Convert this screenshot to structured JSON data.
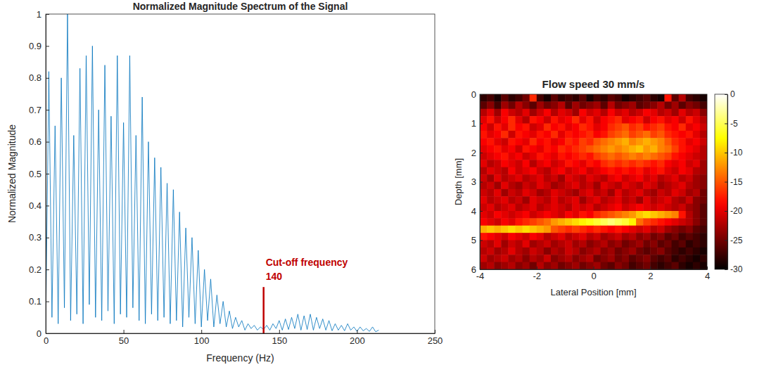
{
  "chart_data": [
    {
      "type": "line",
      "title": "Normalized Magnitude Spectrum of the Signal",
      "x_label": "Frequency (Hz)",
      "y_label": "Normalized Magnitude",
      "xlim": [
        0,
        250
      ],
      "xticks": [
        0,
        50,
        100,
        150,
        200,
        250
      ],
      "ylim": [
        0,
        1
      ],
      "yticks": [
        0,
        0.1,
        0.2,
        0.3,
        0.4,
        0.5,
        0.6,
        0.7,
        0.8,
        0.9,
        1
      ],
      "grid": false,
      "color": "#0072bd",
      "x": [
        0,
        2,
        4,
        6,
        8,
        10,
        12,
        14,
        16,
        18,
        20,
        22,
        24,
        26,
        28,
        30,
        32,
        34,
        36,
        38,
        40,
        42,
        44,
        46,
        48,
        50,
        52,
        54,
        56,
        58,
        60,
        62,
        64,
        66,
        68,
        70,
        72,
        74,
        76,
        78,
        80,
        82,
        84,
        86,
        88,
        90,
        92,
        94,
        96,
        98,
        100,
        102,
        104,
        106,
        108,
        110,
        112,
        114,
        116,
        118,
        120,
        122,
        124,
        126,
        128,
        130,
        132,
        134,
        136,
        138,
        140,
        142,
        144,
        146,
        148,
        150,
        152,
        154,
        156,
        158,
        160,
        162,
        164,
        166,
        168,
        170,
        172,
        174,
        176,
        178,
        180,
        182,
        184,
        186,
        188,
        190,
        192,
        194,
        196,
        198,
        200,
        202,
        204,
        206,
        208,
        210,
        212,
        214
      ],
      "values": [
        0.02,
        0.82,
        0.05,
        0.65,
        0.03,
        0.8,
        0.08,
        1.0,
        0.04,
        0.62,
        0.06,
        0.83,
        0.03,
        0.87,
        0.09,
        0.9,
        0.05,
        0.7,
        0.04,
        0.84,
        0.07,
        0.68,
        0.03,
        0.87,
        0.06,
        0.66,
        0.05,
        0.87,
        0.08,
        0.62,
        0.04,
        0.74,
        0.03,
        0.6,
        0.06,
        0.55,
        0.04,
        0.52,
        0.05,
        0.47,
        0.03,
        0.45,
        0.04,
        0.38,
        0.02,
        0.33,
        0.05,
        0.3,
        0.03,
        0.26,
        0.02,
        0.2,
        0.04,
        0.17,
        0.02,
        0.12,
        0.03,
        0.1,
        0.02,
        0.07,
        0.015,
        0.05,
        0.02,
        0.04,
        0.01,
        0.03,
        0.015,
        0.025,
        0.01,
        0.02,
        0.012,
        0.025,
        0.01,
        0.03,
        0.015,
        0.04,
        0.01,
        0.045,
        0.012,
        0.05,
        0.015,
        0.06,
        0.01,
        0.055,
        0.012,
        0.06,
        0.01,
        0.05,
        0.015,
        0.045,
        0.01,
        0.04,
        0.008,
        0.03,
        0.01,
        0.025,
        0.008,
        0.03,
        0.01,
        0.02,
        0.006,
        0.02,
        0.008,
        0.015,
        0.006,
        0.02,
        0.005,
        0.01
      ],
      "annotations": [
        {
          "text": "Cut-off frequency",
          "label": "140",
          "x": 140,
          "y": [
            0,
            0.145
          ],
          "color": "#c00000"
        }
      ]
    },
    {
      "type": "heatmap",
      "title": "Flow speed 30 mm/s",
      "x_label": "Lateral Position [mm]",
      "y_label": "Depth [mm]",
      "xlim": [
        -4,
        4
      ],
      "xticks": [
        -4,
        -2,
        0,
        2,
        4
      ],
      "ylim": [
        6,
        0
      ],
      "yticks": [
        0,
        1,
        2,
        3,
        4,
        5,
        6
      ],
      "x": [
        -3.875,
        -3.625,
        -3.375,
        -3.125,
        -2.875,
        -2.625,
        -2.375,
        -2.125,
        -1.875,
        -1.625,
        -1.375,
        -1.125,
        -0.875,
        -0.625,
        -0.375,
        -0.125,
        0.125,
        0.375,
        0.625,
        0.875,
        1.125,
        1.375,
        1.625,
        1.875,
        2.125,
        2.375,
        2.625,
        2.875,
        3.125,
        3.375,
        3.625,
        3.875
      ],
      "y": [
        0.125,
        0.375,
        0.625,
        0.875,
        1.125,
        1.375,
        1.625,
        1.875,
        2.125,
        2.375,
        2.625,
        2.875,
        3.125,
        3.375,
        3.625,
        3.875,
        4.125,
        4.375,
        4.625,
        4.875,
        5.125,
        5.375,
        5.625,
        5.875
      ],
      "cells": [
        [
          -28,
          -27,
          -29,
          -26,
          -28,
          -27,
          -25,
          -17,
          -27,
          -29,
          -26,
          -28,
          -27,
          -28,
          -26,
          -29,
          -27,
          -28,
          -26,
          -27,
          -29,
          -28,
          -27,
          -26,
          -28,
          -29,
          -18,
          -26,
          -22,
          -27,
          -28,
          -29
        ],
        [
          -26,
          -24,
          -27,
          -23,
          -25,
          -22,
          -24,
          -26,
          -23,
          -25,
          -24,
          -22,
          -26,
          -23,
          -25,
          -24,
          -23,
          -26,
          -22,
          -25,
          -24,
          -23,
          -26,
          -25,
          -24,
          -22,
          -25,
          -23,
          -26,
          -24,
          -25,
          -27
        ],
        [
          -22,
          -20,
          -23,
          -19,
          -21,
          -22,
          -20,
          -23,
          -21,
          -19,
          -22,
          -20,
          -21,
          -23,
          -19,
          -21,
          -20,
          -22,
          -19,
          -21,
          -20,
          -22,
          -21,
          -19,
          -20,
          -22,
          -21,
          -23,
          -20,
          -22,
          -21,
          -24
        ],
        [
          -20,
          -18,
          -21,
          -19,
          -17,
          -20,
          -22,
          -18,
          -19,
          -21,
          -18,
          -20,
          -19,
          -17,
          -20,
          -18,
          -21,
          -19,
          -18,
          -17,
          -20,
          -19,
          -18,
          -21,
          -19,
          -18,
          -20,
          -19,
          -21,
          -18,
          -20,
          -22
        ],
        [
          -19,
          -21,
          -18,
          -20,
          -17,
          -19,
          -18,
          -21,
          -20,
          -17,
          -19,
          -18,
          -20,
          -19,
          -17,
          -18,
          -20,
          -19,
          -17,
          -16,
          -15,
          -17,
          -16,
          -18,
          -17,
          -16,
          -18,
          -19,
          -17,
          -20,
          -19,
          -21
        ],
        [
          -18,
          -20,
          -19,
          -17,
          -21,
          -18,
          -19,
          -20,
          -18,
          -19,
          -17,
          -20,
          -18,
          -19,
          -18,
          -17,
          -19,
          -18,
          -16,
          -15,
          -14,
          -16,
          -15,
          -14,
          -16,
          -15,
          -17,
          -18,
          -19,
          -18,
          -20,
          -22
        ],
        [
          -19,
          -18,
          -20,
          -21,
          -18,
          -19,
          -20,
          -17,
          -19,
          -18,
          -20,
          -19,
          -17,
          -18,
          -16,
          -17,
          -15,
          -14,
          -13,
          -12,
          -11,
          -13,
          -12,
          -11,
          -12,
          -13,
          -15,
          -17,
          -18,
          -20,
          -19,
          -21
        ],
        [
          -20,
          -19,
          -18,
          -20,
          -19,
          -21,
          -18,
          -19,
          -20,
          -18,
          -19,
          -17,
          -18,
          -17,
          -16,
          -15,
          -14,
          -13,
          -12,
          -13,
          -12,
          -11,
          -10,
          -12,
          -11,
          -13,
          -14,
          -16,
          -18,
          -19,
          -20,
          -22
        ],
        [
          -21,
          -20,
          -19,
          -18,
          -20,
          -19,
          -21,
          -20,
          -18,
          -19,
          -20,
          -18,
          -19,
          -18,
          -17,
          -18,
          -16,
          -15,
          -14,
          -15,
          -14,
          -13,
          -14,
          -13,
          -14,
          -15,
          -16,
          -18,
          -19,
          -20,
          -21,
          -22
        ],
        [
          -20,
          -22,
          -21,
          -19,
          -20,
          -21,
          -19,
          -22,
          -20,
          -19,
          -21,
          -20,
          -18,
          -19,
          -20,
          -18,
          -19,
          -17,
          -16,
          -17,
          -16,
          -17,
          -16,
          -17,
          -18,
          -17,
          -19,
          -20,
          -19,
          -21,
          -20,
          -23
        ],
        [
          -22,
          -20,
          -21,
          -22,
          -19,
          -21,
          -20,
          -19,
          -21,
          -22,
          -20,
          -19,
          -21,
          -20,
          -19,
          -21,
          -20,
          -19,
          -18,
          -19,
          -18,
          -19,
          -18,
          -20,
          -19,
          -18,
          -20,
          -21,
          -19,
          -20,
          -22,
          -23
        ],
        [
          -21,
          -23,
          -20,
          -22,
          -21,
          -20,
          -22,
          -21,
          -20,
          -22,
          -21,
          -23,
          -20,
          -21,
          -22,
          -20,
          -21,
          -22,
          -20,
          -19,
          -21,
          -20,
          -19,
          -21,
          -20,
          -22,
          -21,
          -20,
          -22,
          -21,
          -23,
          -24
        ],
        [
          -22,
          -21,
          -23,
          -20,
          -22,
          -23,
          -21,
          -22,
          -20,
          -21,
          -23,
          -22,
          -21,
          -20,
          -22,
          -21,
          -23,
          -20,
          -21,
          -22,
          -20,
          -21,
          -22,
          -20,
          -21,
          -23,
          -22,
          -21,
          -20,
          -22,
          -23,
          -24
        ],
        [
          -21,
          -22,
          -20,
          -23,
          -21,
          -22,
          -20,
          -21,
          -23,
          -22,
          -20,
          -21,
          -22,
          -23,
          -21,
          -20,
          -22,
          -21,
          -23,
          -20,
          -22,
          -21,
          -20,
          -22,
          -23,
          -21,
          -22,
          -20,
          -21,
          -23,
          -22,
          -25
        ],
        [
          -20,
          -22,
          -21,
          -20,
          -22,
          -21,
          -23,
          -20,
          -21,
          -22,
          -20,
          -22,
          -21,
          -20,
          -23,
          -21,
          -20,
          -22,
          -21,
          -20,
          -22,
          -21,
          -23,
          -20,
          -22,
          -21,
          -20,
          -22,
          -23,
          -21,
          -24,
          -25
        ],
        [
          -21,
          -20,
          -22,
          -21,
          -20,
          -22,
          -21,
          -20,
          -22,
          -21,
          -20,
          -21,
          -22,
          -20,
          -21,
          -20,
          -22,
          -21,
          -20,
          -19,
          -21,
          -20,
          -19,
          -20,
          -21,
          -20,
          -21,
          -22,
          -21,
          -23,
          -24,
          -26
        ],
        [
          -20,
          -21,
          -19,
          -20,
          -21,
          -20,
          -19,
          -21,
          -20,
          -19,
          -20,
          -21,
          -19,
          -20,
          -18,
          -19,
          -17,
          -16,
          -15,
          -14,
          -13,
          -12,
          -10,
          -9,
          -10,
          -11,
          -12,
          -13,
          -18,
          -22,
          -24,
          -26
        ],
        [
          -19,
          -20,
          -21,
          -19,
          -20,
          -18,
          -17,
          -16,
          -15,
          -14,
          -12,
          -11,
          -10,
          -9,
          -8,
          -7,
          -6,
          -5,
          -4,
          -5,
          -6,
          -8,
          -14,
          -16,
          -17,
          -18,
          -19,
          -20,
          -21,
          -22,
          -24,
          -26
        ],
        [
          -11,
          -10,
          -11,
          -10,
          -9,
          -10,
          -9,
          -10,
          -11,
          -12,
          -15,
          -16,
          -17,
          -16,
          -17,
          -18,
          -17,
          -18,
          -19,
          -18,
          -19,
          -20,
          -21,
          -20,
          -22,
          -21,
          -23,
          -24,
          -25,
          -24,
          -26,
          -27
        ],
        [
          -18,
          -19,
          -20,
          -21,
          -19,
          -20,
          -21,
          -19,
          -20,
          -22,
          -21,
          -20,
          -22,
          -21,
          -20,
          -22,
          -21,
          -23,
          -22,
          -21,
          -23,
          -22,
          -24,
          -23,
          -25,
          -24,
          -26,
          -25,
          -27,
          -26,
          -27,
          -28
        ],
        [
          -21,
          -22,
          -20,
          -23,
          -21,
          -22,
          -20,
          -23,
          -22,
          -21,
          -23,
          -22,
          -21,
          -23,
          -22,
          -24,
          -23,
          -22,
          -24,
          -23,
          -25,
          -24,
          -23,
          -25,
          -24,
          -26,
          -25,
          -27,
          -26,
          -28,
          -27,
          -28
        ],
        [
          -22,
          -21,
          -23,
          -22,
          -20,
          -22,
          -23,
          -21,
          -22,
          -24,
          -22,
          -23,
          -21,
          -22,
          -24,
          -23,
          -22,
          -24,
          -23,
          -25,
          -24,
          -23,
          -25,
          -26,
          -25,
          -24,
          -26,
          -27,
          -28,
          -27,
          -28,
          -29
        ],
        [
          -21,
          -23,
          -22,
          -21,
          -23,
          -22,
          -24,
          -22,
          -23,
          -21,
          -24,
          -23,
          -22,
          -24,
          -23,
          -22,
          -25,
          -24,
          -23,
          -25,
          -24,
          -26,
          -25,
          -24,
          -26,
          -27,
          -26,
          -28,
          -27,
          -28,
          -29,
          -28
        ],
        [
          -23,
          -22,
          -24,
          -23,
          -22,
          -24,
          -23,
          -25,
          -22,
          -24,
          -23,
          -25,
          -24,
          -23,
          -25,
          -24,
          -23,
          -25,
          -26,
          -24,
          -25,
          -27,
          -26,
          -25,
          -27,
          -28,
          -27,
          -26,
          -28,
          -29,
          -28,
          -29
        ]
      ],
      "colorbar_range": [
        -30,
        0
      ],
      "colorbar_ticks": [
        0,
        -5,
        -10,
        -15,
        -20,
        -25,
        -30
      ]
    }
  ]
}
